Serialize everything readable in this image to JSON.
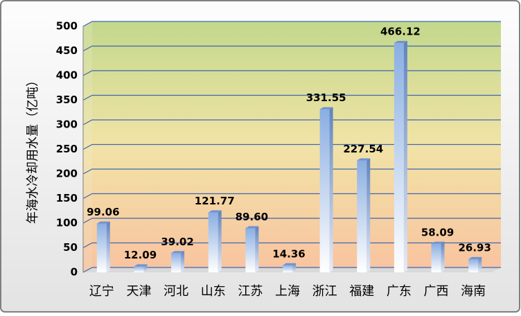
{
  "chart_data": {
    "type": "bar",
    "y_label": "年海水冷却用水量（亿吨）",
    "categories": [
      "辽宁",
      "天津",
      "河北",
      "山东",
      "江苏",
      "上海",
      "浙江",
      "福建",
      "广东",
      "广西",
      "海南"
    ],
    "values": [
      99.06,
      12.09,
      39.02,
      121.77,
      89.6,
      14.36,
      331.55,
      227.54,
      466.12,
      58.09,
      26.93
    ],
    "value_labels": [
      "99.06",
      "12.09",
      "39.02",
      "121.77",
      "89.60",
      "14.36",
      "331.55",
      "227.54",
      "466.12",
      "58.09",
      "26.93"
    ],
    "color": "#7b9fd6",
    "ylim": [
      0,
      500
    ],
    "yticks": [
      0,
      50,
      100,
      150,
      200,
      250,
      300,
      350,
      400,
      450,
      500
    ],
    "grid": true
  }
}
